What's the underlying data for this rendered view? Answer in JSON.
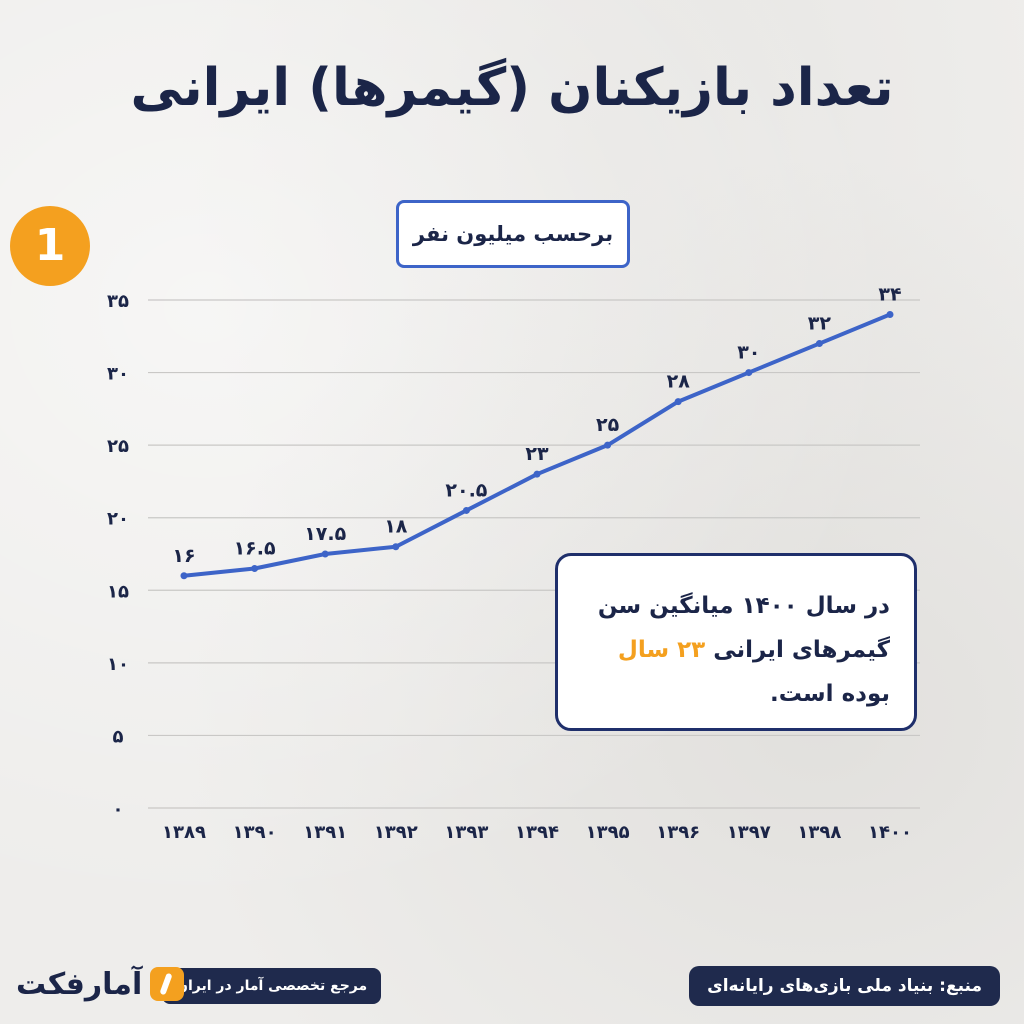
{
  "title": "تعداد بازیکنان (گیمرها) ایرانی",
  "page_badge": "1",
  "unit_label": "برحسب میلیون نفر",
  "note": {
    "part1": "در سال ۱۴۰۰ میانگین سن گیمرهای ایرانی ",
    "highlight": "۲۳ سال",
    "part2": " بوده است."
  },
  "footer": {
    "source": "منبع: بنیاد ملی بازی‌های رایانه‌ای",
    "tagline": "مرجع تخصصی آمار در ایران",
    "logo_text": "آمارفکت"
  },
  "colors": {
    "line": "#3d64c8",
    "title": "#1b2548",
    "accent": "#f4a01f"
  },
  "chart_data": {
    "type": "line",
    "categories": [
      "۱۳۸۹",
      "۱۳۹۰",
      "۱۳۹۱",
      "۱۳۹۲",
      "۱۳۹۳",
      "۱۳۹۴",
      "۱۳۹۵",
      "۱۳۹۶",
      "۱۳۹۷",
      "۱۳۹۸",
      "۱۴۰۰"
    ],
    "values": [
      16,
      16.5,
      17.5,
      18,
      20.5,
      23,
      25,
      28,
      30,
      32,
      34
    ],
    "data_labels": [
      "۱۶",
      "۱۶.۵",
      "۱۷.۵",
      "۱۸",
      "۲۰.۵",
      "۲۳",
      "۲۵",
      "۲۸",
      "۳۰",
      "۳۲",
      "۳۴"
    ],
    "yticks": [
      0,
      5,
      10,
      15,
      20,
      25,
      30,
      35
    ],
    "ytick_labels": [
      "۰",
      "۵",
      "۱۰",
      "۱۵",
      "۲۰",
      "۲۵",
      "۳۰",
      "۳۵"
    ],
    "ylim": [
      0,
      35
    ],
    "grid": true
  }
}
